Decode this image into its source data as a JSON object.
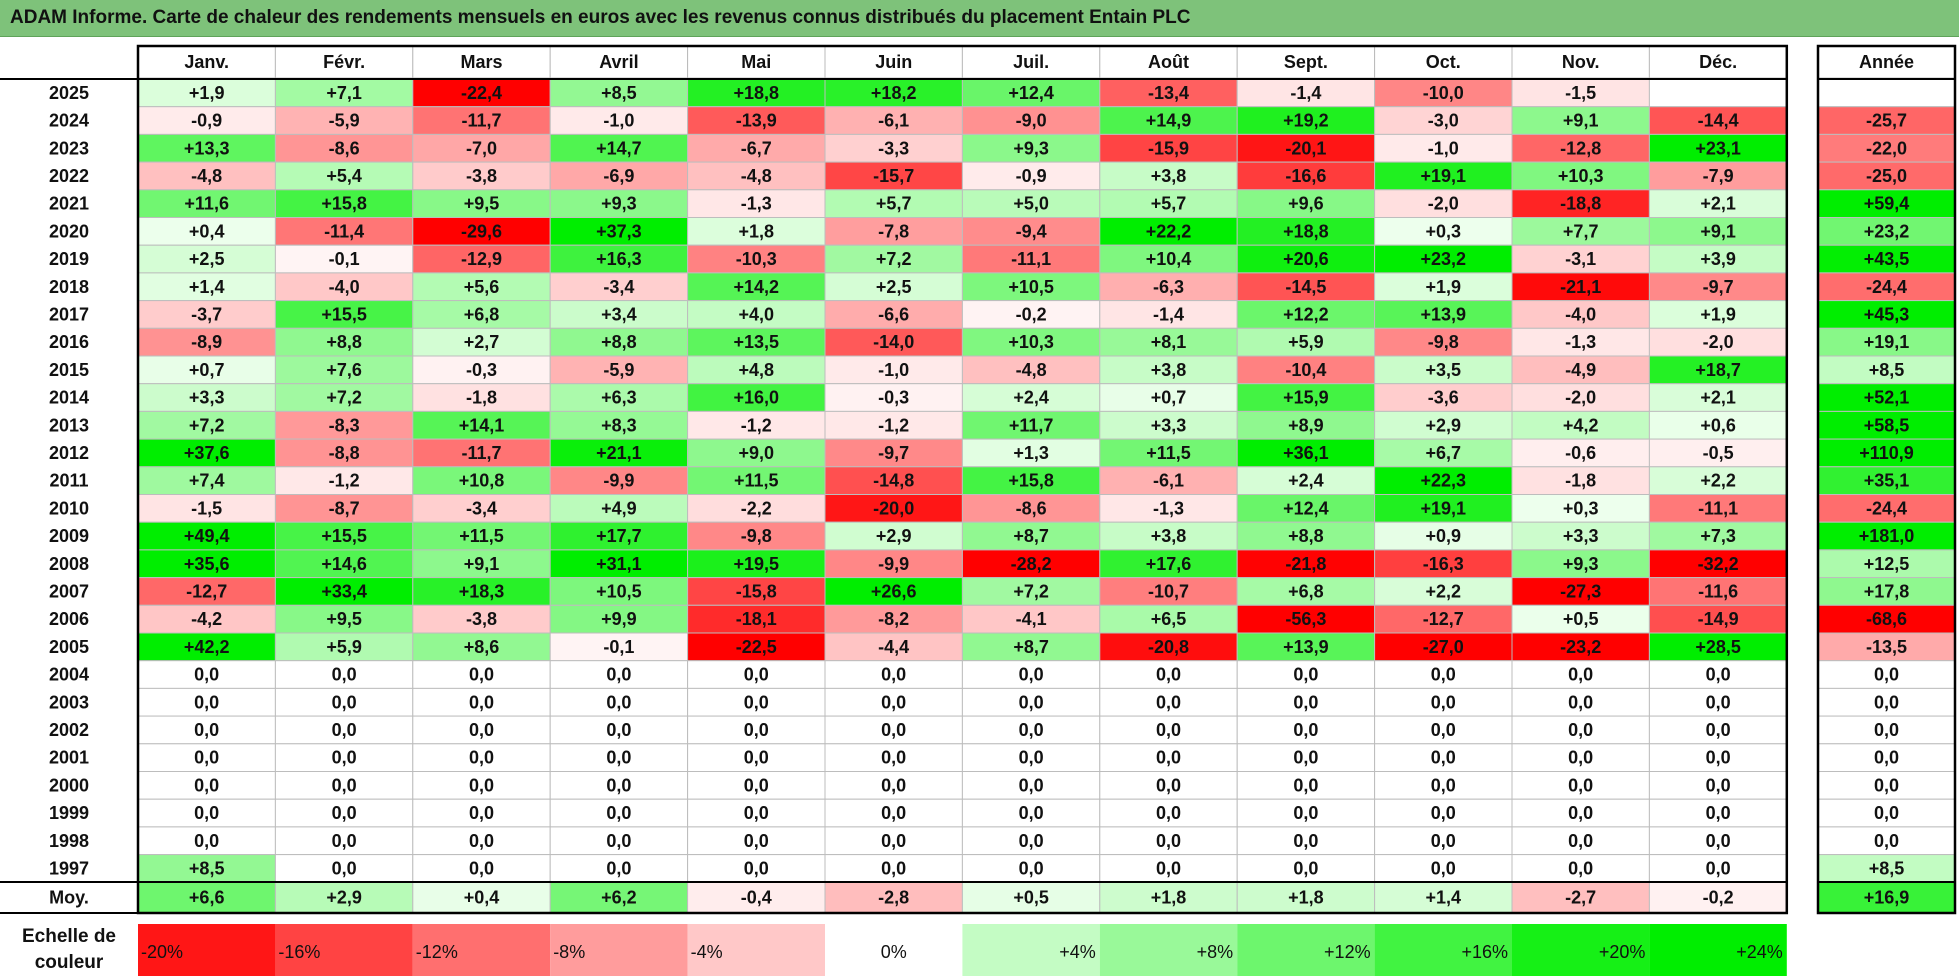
{
  "title": "ADAM Informe. Carte de chaleur des rendements mensuels en euros avec les revenus connus distribués du placement Entain PLC",
  "chart_data": {
    "type": "heatmap",
    "months": [
      "Janv.",
      "Févr.",
      "Mars",
      "Avril",
      "Mai",
      "Juin",
      "Juil.",
      "Août",
      "Sept.",
      "Oct.",
      "Nov.",
      "Déc."
    ],
    "year_header": "Année",
    "rows": [
      {
        "year": "2025",
        "values": [
          "+1,9",
          "+7,1",
          "-22,4",
          "+8,5",
          "+18,8",
          "+18,2",
          "+12,4",
          "-13,4",
          "-1,4",
          "-10,0",
          "-1,5",
          ""
        ],
        "total": ""
      },
      {
        "year": "2024",
        "values": [
          "-0,9",
          "-5,9",
          "-11,7",
          "-1,0",
          "-13,9",
          "-6,1",
          "-9,0",
          "+14,9",
          "+19,2",
          "-3,0",
          "+9,1",
          "-14,4"
        ],
        "total": "-25,7"
      },
      {
        "year": "2023",
        "values": [
          "+13,3",
          "-8,6",
          "-7,0",
          "+14,7",
          "-6,7",
          "-3,3",
          "+9,3",
          "-15,9",
          "-20,1",
          "-1,0",
          "-12,8",
          "+23,1"
        ],
        "total": "-22,0"
      },
      {
        "year": "2022",
        "values": [
          "-4,8",
          "+5,4",
          "-3,8",
          "-6,9",
          "-4,8",
          "-15,7",
          "-0,9",
          "+3,8",
          "-16,6",
          "+19,1",
          "+10,3",
          "-7,9"
        ],
        "total": "-25,0"
      },
      {
        "year": "2021",
        "values": [
          "+11,6",
          "+15,8",
          "+9,5",
          "+9,3",
          "-1,3",
          "+5,7",
          "+5,0",
          "+5,7",
          "+9,6",
          "-2,0",
          "-18,8",
          "+2,1"
        ],
        "total": "+59,4"
      },
      {
        "year": "2020",
        "values": [
          "+0,4",
          "-11,4",
          "-29,6",
          "+37,3",
          "+1,8",
          "-7,8",
          "-9,4",
          "+22,2",
          "+18,8",
          "+0,3",
          "+7,7",
          "+9,1"
        ],
        "total": "+23,2"
      },
      {
        "year": "2019",
        "values": [
          "+2,5",
          "-0,1",
          "-12,9",
          "+16,3",
          "-10,3",
          "+7,2",
          "-11,1",
          "+10,4",
          "+20,6",
          "+23,2",
          "-3,1",
          "+3,9"
        ],
        "total": "+43,5"
      },
      {
        "year": "2018",
        "values": [
          "+1,4",
          "-4,0",
          "+5,6",
          "-3,4",
          "+14,2",
          "+2,5",
          "+10,5",
          "-6,3",
          "-14,5",
          "+1,9",
          "-21,1",
          "-9,7"
        ],
        "total": "-24,4"
      },
      {
        "year": "2017",
        "values": [
          "-3,7",
          "+15,5",
          "+6,8",
          "+3,4",
          "+4,0",
          "-6,6",
          "-0,2",
          "-1,4",
          "+12,2",
          "+13,9",
          "-4,0",
          "+1,9"
        ],
        "total": "+45,3"
      },
      {
        "year": "2016",
        "values": [
          "-8,9",
          "+8,8",
          "+2,7",
          "+8,8",
          "+13,5",
          "-14,0",
          "+10,3",
          "+8,1",
          "+5,9",
          "-9,8",
          "-1,3",
          "-2,0"
        ],
        "total": "+19,1"
      },
      {
        "year": "2015",
        "values": [
          "+0,7",
          "+7,6",
          "-0,3",
          "-5,9",
          "+4,8",
          "-1,0",
          "-4,8",
          "+3,8",
          "-10,4",
          "+3,5",
          "-4,9",
          "+18,7"
        ],
        "total": "+8,5"
      },
      {
        "year": "2014",
        "values": [
          "+3,3",
          "+7,2",
          "-1,8",
          "+6,3",
          "+16,0",
          "-0,3",
          "+2,4",
          "+0,7",
          "+15,9",
          "-3,6",
          "-2,0",
          "+2,1"
        ],
        "total": "+52,1"
      },
      {
        "year": "2013",
        "values": [
          "+7,2",
          "-8,3",
          "+14,1",
          "+8,3",
          "-1,2",
          "-1,2",
          "+11,7",
          "+3,3",
          "+8,9",
          "+2,9",
          "+4,2",
          "+0,6"
        ],
        "total": "+58,5"
      },
      {
        "year": "2012",
        "values": [
          "+37,6",
          "-8,8",
          "-11,7",
          "+21,1",
          "+9,0",
          "-9,7",
          "+1,3",
          "+11,5",
          "+36,1",
          "+6,7",
          "-0,6",
          "-0,5"
        ],
        "total": "+110,9"
      },
      {
        "year": "2011",
        "values": [
          "+7,4",
          "-1,2",
          "+10,8",
          "-9,9",
          "+11,5",
          "-14,8",
          "+15,8",
          "-6,1",
          "+2,4",
          "+22,3",
          "-1,8",
          "+2,2"
        ],
        "total": "+35,1"
      },
      {
        "year": "2010",
        "values": [
          "-1,5",
          "-8,7",
          "-3,4",
          "+4,9",
          "-2,2",
          "-20,0",
          "-8,6",
          "-1,3",
          "+12,4",
          "+19,1",
          "+0,3",
          "-11,1"
        ],
        "total": "-24,4"
      },
      {
        "year": "2009",
        "values": [
          "+49,4",
          "+15,5",
          "+11,5",
          "+17,7",
          "-9,8",
          "+2,9",
          "+8,7",
          "+3,8",
          "+8,8",
          "+0,9",
          "+3,3",
          "+7,3"
        ],
        "total": "+181,0"
      },
      {
        "year": "2008",
        "values": [
          "+35,6",
          "+14,6",
          "+9,1",
          "+31,1",
          "+19,5",
          "-9,9",
          "-28,2",
          "+17,6",
          "-21,8",
          "-16,3",
          "+9,3",
          "-32,2"
        ],
        "total": "+12,5"
      },
      {
        "year": "2007",
        "values": [
          "-12,7",
          "+33,4",
          "+18,3",
          "+10,5",
          "-15,8",
          "+26,6",
          "+7,2",
          "-10,7",
          "+6,8",
          "+2,2",
          "-27,3",
          "-11,6"
        ],
        "total": "+17,8"
      },
      {
        "year": "2006",
        "values": [
          "-4,2",
          "+9,5",
          "-3,8",
          "+9,9",
          "-18,1",
          "-8,2",
          "-4,1",
          "+6,5",
          "-56,3",
          "-12,7",
          "+0,5",
          "-14,9"
        ],
        "total": "-68,6"
      },
      {
        "year": "2005",
        "values": [
          "+42,2",
          "+5,9",
          "+8,6",
          "-0,1",
          "-22,5",
          "-4,4",
          "+8,7",
          "-20,8",
          "+13,9",
          "-27,0",
          "-23,2",
          "+28,5"
        ],
        "total": "-13,5"
      },
      {
        "year": "2004",
        "values": [
          "0,0",
          "0,0",
          "0,0",
          "0,0",
          "0,0",
          "0,0",
          "0,0",
          "0,0",
          "0,0",
          "0,0",
          "0,0",
          "0,0"
        ],
        "total": "0,0"
      },
      {
        "year": "2003",
        "values": [
          "0,0",
          "0,0",
          "0,0",
          "0,0",
          "0,0",
          "0,0",
          "0,0",
          "0,0",
          "0,0",
          "0,0",
          "0,0",
          "0,0"
        ],
        "total": "0,0"
      },
      {
        "year": "2002",
        "values": [
          "0,0",
          "0,0",
          "0,0",
          "0,0",
          "0,0",
          "0,0",
          "0,0",
          "0,0",
          "0,0",
          "0,0",
          "0,0",
          "0,0"
        ],
        "total": "0,0"
      },
      {
        "year": "2001",
        "values": [
          "0,0",
          "0,0",
          "0,0",
          "0,0",
          "0,0",
          "0,0",
          "0,0",
          "0,0",
          "0,0",
          "0,0",
          "0,0",
          "0,0"
        ],
        "total": "0,0"
      },
      {
        "year": "2000",
        "values": [
          "0,0",
          "0,0",
          "0,0",
          "0,0",
          "0,0",
          "0,0",
          "0,0",
          "0,0",
          "0,0",
          "0,0",
          "0,0",
          "0,0"
        ],
        "total": "0,0"
      },
      {
        "year": "1999",
        "values": [
          "0,0",
          "0,0",
          "0,0",
          "0,0",
          "0,0",
          "0,0",
          "0,0",
          "0,0",
          "0,0",
          "0,0",
          "0,0",
          "0,0"
        ],
        "total": "0,0"
      },
      {
        "year": "1998",
        "values": [
          "0,0",
          "0,0",
          "0,0",
          "0,0",
          "0,0",
          "0,0",
          "0,0",
          "0,0",
          "0,0",
          "0,0",
          "0,0",
          "0,0"
        ],
        "total": "0,0"
      },
      {
        "year": "1997",
        "values": [
          "+8,5",
          "0,0",
          "0,0",
          "0,0",
          "0,0",
          "0,0",
          "0,0",
          "0,0",
          "0,0",
          "0,0",
          "0,0",
          "0,0"
        ],
        "total": "+8,5"
      }
    ],
    "average": {
      "label": "Moy.",
      "values": [
        "+6,6",
        "+2,9",
        "+0,4",
        "+6,2",
        "-0,4",
        "-2,8",
        "+0,5",
        "+1,8",
        "+1,8",
        "+1,4",
        "-2,7",
        "-0,2"
      ],
      "total": "+16,9"
    },
    "legend": {
      "label": "Echelle de couleur",
      "steps": [
        "-20%",
        "-16%",
        "-12%",
        "-8%",
        "-4%",
        "0%",
        "+4%",
        "+8%",
        "+12%",
        "+16%",
        "+20%",
        "+24%"
      ]
    },
    "colors": {
      "negative": "#ff0000",
      "positive": "#00ee00",
      "neutral": "#ffffff"
    }
  }
}
